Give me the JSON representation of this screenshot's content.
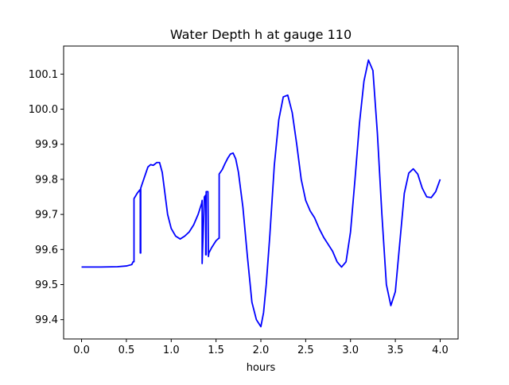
{
  "chart_data": {
    "type": "line",
    "title": "Water Depth h at gauge 110",
    "xlabel": "hours",
    "ylabel": "",
    "xlim": [
      -0.2,
      4.2
    ],
    "ylim": [
      99.345,
      100.18
    ],
    "xticks": [
      0.0,
      0.5,
      1.0,
      1.5,
      2.0,
      2.5,
      3.0,
      3.5,
      4.0
    ],
    "xtick_labels": [
      "0.0",
      "0.5",
      "1.0",
      "1.5",
      "2.0",
      "2.5",
      "3.0",
      "3.5",
      "4.0"
    ],
    "yticks": [
      99.4,
      99.5,
      99.6,
      99.7,
      99.8,
      99.9,
      100.0,
      100.1
    ],
    "ytick_labels": [
      "99.4",
      "99.5",
      "99.6",
      "99.7",
      "99.8",
      "99.9",
      "100.0",
      "100.1"
    ],
    "grid": false,
    "series": [
      {
        "name": "",
        "color": "#0000ff",
        "x": [
          0.0,
          0.2,
          0.4,
          0.5,
          0.56,
          0.575,
          0.585,
          0.585,
          0.62,
          0.65,
          0.655,
          0.655,
          0.66,
          0.66,
          0.7,
          0.74,
          0.77,
          0.8,
          0.84,
          0.87,
          0.9,
          0.93,
          0.96,
          1.0,
          1.05,
          1.1,
          1.15,
          1.2,
          1.25,
          1.3,
          1.34,
          1.345,
          1.345,
          1.37,
          1.385,
          1.385,
          1.39,
          1.39,
          1.41,
          1.415,
          1.415,
          1.42,
          1.45,
          1.5,
          1.53,
          1.535,
          1.535,
          1.57,
          1.6,
          1.63,
          1.66,
          1.69,
          1.72,
          1.75,
          1.8,
          1.85,
          1.9,
          1.95,
          2.0,
          2.03,
          2.06,
          2.1,
          2.15,
          2.2,
          2.25,
          2.3,
          2.35,
          2.4,
          2.45,
          2.5,
          2.55,
          2.6,
          2.65,
          2.7,
          2.75,
          2.8,
          2.85,
          2.9,
          2.95,
          3.0,
          3.05,
          3.1,
          3.15,
          3.2,
          3.25,
          3.3,
          3.35,
          3.4,
          3.45,
          3.5,
          3.55,
          3.6,
          3.65,
          3.7,
          3.75,
          3.8,
          3.85,
          3.9,
          3.95,
          4.0
        ],
        "y": [
          99.55,
          99.55,
          99.551,
          99.553,
          99.557,
          99.565,
          99.565,
          99.745,
          99.76,
          99.77,
          99.77,
          99.59,
          99.59,
          99.775,
          99.805,
          99.835,
          99.842,
          99.84,
          99.848,
          99.848,
          99.82,
          99.76,
          99.7,
          99.66,
          99.638,
          99.63,
          99.638,
          99.65,
          99.67,
          99.7,
          99.732,
          99.74,
          99.56,
          99.75,
          99.755,
          99.585,
          99.585,
          99.765,
          99.765,
          99.58,
          99.58,
          99.59,
          99.605,
          99.625,
          99.632,
          99.632,
          99.815,
          99.828,
          99.845,
          99.86,
          99.872,
          99.875,
          99.858,
          99.82,
          99.72,
          99.58,
          99.45,
          99.4,
          99.38,
          99.42,
          99.5,
          99.64,
          99.84,
          99.97,
          100.035,
          100.04,
          99.99,
          99.9,
          99.8,
          99.74,
          99.71,
          99.69,
          99.66,
          99.635,
          99.615,
          99.595,
          99.565,
          99.55,
          99.565,
          99.65,
          99.8,
          99.96,
          100.08,
          100.14,
          100.11,
          99.93,
          99.7,
          99.5,
          99.44,
          99.48,
          99.62,
          99.76,
          99.818,
          99.83,
          99.815,
          99.775,
          99.75,
          99.748,
          99.765,
          99.8
        ]
      }
    ]
  }
}
